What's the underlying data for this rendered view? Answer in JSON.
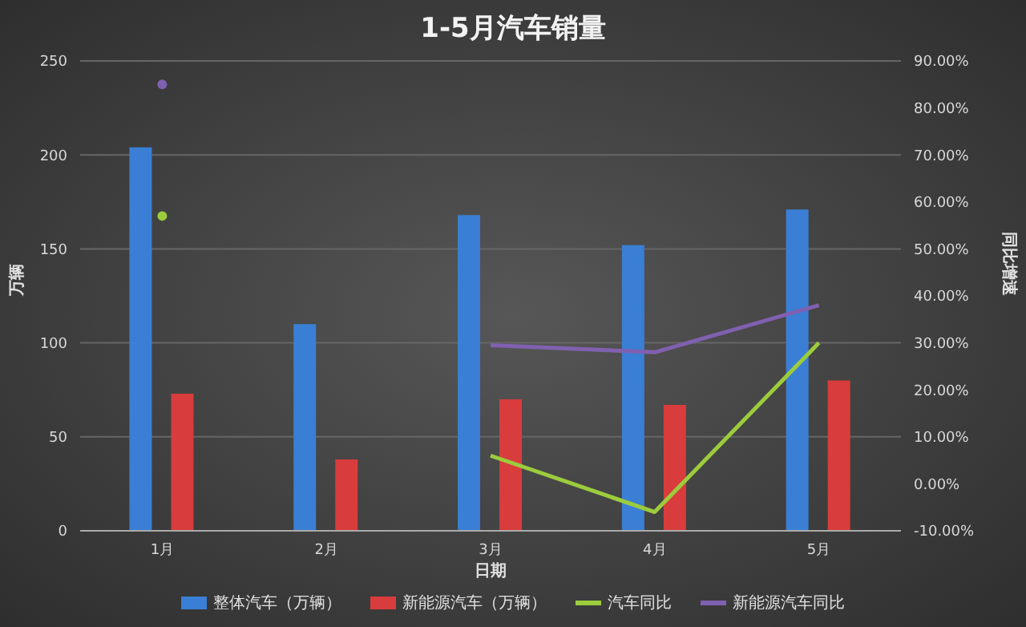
{
  "chart_data": {
    "type": "bar",
    "title": "1-5月汽车销量",
    "xlabel": "日期",
    "ylabel": "万辆",
    "y2label": "同比增速",
    "categories": [
      "1月",
      "2月",
      "3月",
      "4月",
      "5月"
    ],
    "series": [
      {
        "name": "整体汽车（万辆）",
        "color": "#3a7fd5",
        "values": [
          204,
          110,
          168,
          152,
          171
        ]
      },
      {
        "name": "新能源汽车（万辆）",
        "color": "#d93c3c",
        "values": [
          73,
          38,
          70,
          67,
          80
        ]
      },
      {
        "name": "汽车同比",
        "type": "line",
        "axis": "y2",
        "color": "#9ccc3c",
        "values": [
          57,
          null,
          6,
          -6,
          30
        ]
      },
      {
        "name": "新能源汽车同比",
        "type": "line",
        "axis": "y2",
        "color": "#8060b0",
        "values": [
          85,
          null,
          29.5,
          28,
          38
        ]
      }
    ],
    "ylim": [
      0,
      250
    ],
    "yticks": [
      0,
      50,
      100,
      150,
      200,
      250
    ],
    "y2lim": [
      -10,
      90
    ],
    "y2ticks": [
      {
        "value": -10,
        "label": "-10.00%"
      },
      {
        "value": 0,
        "label": "0.00%"
      },
      {
        "value": 10,
        "label": "10.00%"
      },
      {
        "value": 20,
        "label": "20.00%"
      },
      {
        "value": 30,
        "label": "30.00%"
      },
      {
        "value": 40,
        "label": "40.00%"
      },
      {
        "value": 50,
        "label": "50.00%"
      },
      {
        "value": 60,
        "label": "60.00%"
      },
      {
        "value": 70,
        "label": "70.00%"
      },
      {
        "value": 80,
        "label": "80.00%"
      },
      {
        "value": 90,
        "label": "90.00%"
      }
    ],
    "grid": "y",
    "legend": "bottom",
    "marker": "none",
    "line_style": "solid"
  }
}
